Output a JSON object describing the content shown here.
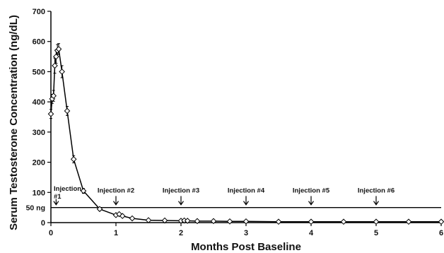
{
  "chart_data": {
    "type": "line",
    "xlabel": "Months Post Baseline",
    "ylabel": "Serum Testosterone Concentration (ng/dL)",
    "xlim": [
      0,
      6
    ],
    "ylim": [
      0,
      700
    ],
    "xticks": [
      "0",
      "1",
      "2",
      "3",
      "4",
      "5",
      "6"
    ],
    "xtick_values": [
      0,
      1,
      2,
      3,
      4,
      5,
      6
    ],
    "yticks": [
      "0",
      "100",
      "200",
      "300",
      "400",
      "500",
      "600",
      "700"
    ],
    "ytick_values": [
      0,
      100,
      200,
      300,
      400,
      500,
      600,
      700
    ],
    "grid": false,
    "reference_line": {
      "label": "50 ng",
      "y": 50
    },
    "series": [
      {
        "marker": "diamond",
        "color": "#000000",
        "x": [
          0.0,
          0.02,
          0.04,
          0.06,
          0.08,
          0.1,
          0.12,
          0.17,
          0.25,
          0.35,
          0.5,
          0.75,
          1.0,
          1.05,
          1.1,
          1.25,
          1.5,
          1.75,
          2.0,
          2.05,
          2.1,
          2.25,
          2.5,
          2.75,
          3.0,
          3.5,
          4.0,
          4.5,
          5.0,
          5.5,
          6.0
        ],
        "y": [
          360,
          410,
          420,
          520,
          550,
          570,
          575,
          500,
          370,
          210,
          105,
          45,
          25,
          28,
          22,
          14,
          8,
          7,
          6,
          7,
          6,
          5,
          5,
          4,
          4,
          3,
          3,
          3,
          3,
          3,
          3
        ],
        "error": [
          15,
          15,
          18,
          25,
          22,
          20,
          18,
          20,
          15,
          12,
          8,
          5,
          4,
          4,
          4,
          3,
          2,
          2,
          2,
          2,
          2,
          2,
          2,
          2,
          2,
          1,
          1,
          1,
          1,
          1,
          1
        ]
      }
    ],
    "injections": [
      {
        "label": "Injection #1",
        "x": 0.08
      },
      {
        "label": "Injection #2",
        "x": 1.0
      },
      {
        "label": "Injection #3",
        "x": 2.0
      },
      {
        "label": "Injection #4",
        "x": 3.0
      },
      {
        "label": "Injection #5",
        "x": 4.0
      },
      {
        "label": "Injection #6",
        "x": 5.0
      }
    ]
  }
}
